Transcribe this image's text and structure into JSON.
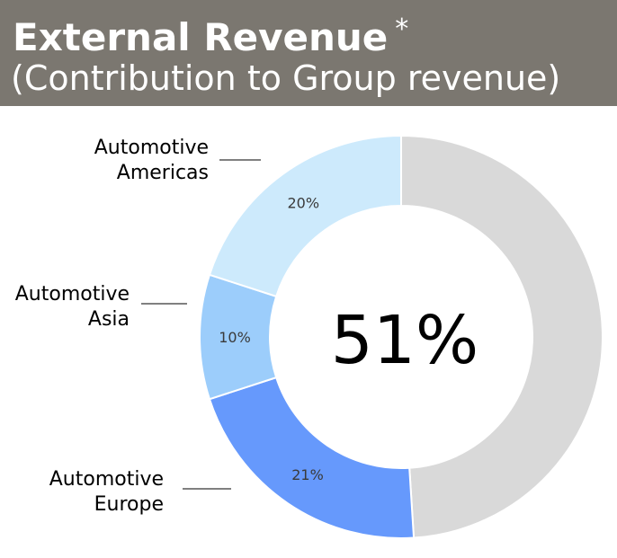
{
  "header": {
    "title": "External Revenue",
    "asterisk": "*",
    "subtitle": "(Contribution to Group revenue)"
  },
  "colors": {
    "header_bg": "#7b7770",
    "americas": "#cdeafc",
    "asia": "#9ccdfb",
    "europe": "#6699fc",
    "other": "#d9d9d9"
  },
  "chart_data": {
    "type": "pie",
    "donut": true,
    "center_label": "51%",
    "start": "top, clockwise",
    "segments": [
      {
        "name": "",
        "value": 49,
        "label": "",
        "color": "#d9d9d9"
      },
      {
        "name": "Automotive Europe",
        "value": 21,
        "label": "21%",
        "color": "#6699fc"
      },
      {
        "name": "Automotive Asia",
        "value": 10,
        "label": "10%",
        "color": "#9ccdfb"
      },
      {
        "name": "Automotive Americas",
        "value": 20,
        "label": "20%",
        "color": "#cdeafc"
      }
    ]
  }
}
